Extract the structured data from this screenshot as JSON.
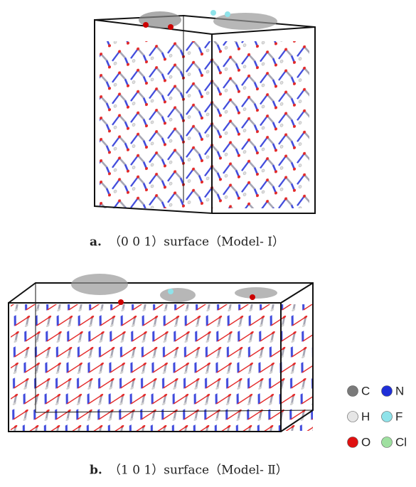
{
  "panels": [
    {
      "label": "a.",
      "caption": "（0 0 1）surface（Model- Ⅰ）"
    },
    {
      "label": "b.",
      "caption": "（1 0 1）surface（Model- Ⅱ）"
    }
  ],
  "legend": [
    {
      "symbol": "C",
      "color": "#7a7a7a"
    },
    {
      "symbol": "N",
      "color": "#1f2fd8"
    },
    {
      "symbol": "H",
      "color": "#e6e6e6"
    },
    {
      "symbol": "F",
      "color": "#8fe3ea"
    },
    {
      "symbol": "O",
      "color": "#e01010"
    },
    {
      "symbol": "Cl",
      "color": "#9fe0a0"
    }
  ]
}
